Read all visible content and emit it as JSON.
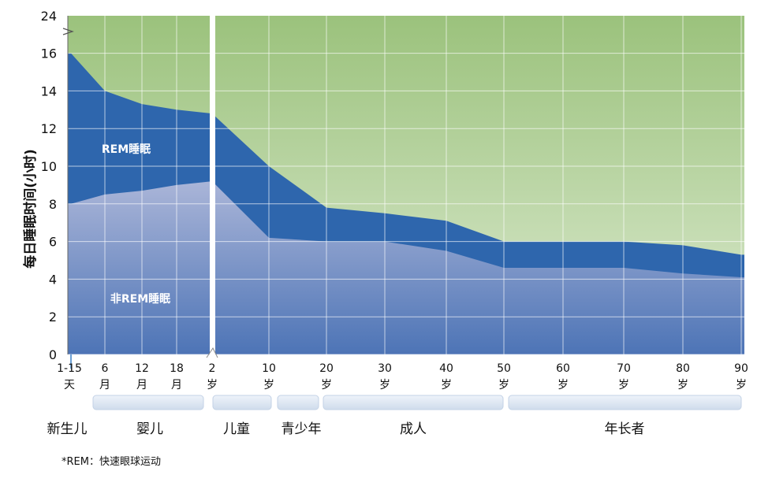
{
  "chart_data": {
    "type": "area",
    "ylabel": "每日睡眠时间(小时)",
    "ylim": [
      0,
      24
    ],
    "y_ticks": [
      "0",
      "2",
      "4",
      "6",
      "8",
      "10",
      "12",
      "14",
      "16",
      "24"
    ],
    "x_ticks": [
      {
        "top": "1-15",
        "bottom": "天"
      },
      {
        "top": "6",
        "bottom": "月"
      },
      {
        "top": "12",
        "bottom": "月"
      },
      {
        "top": "18",
        "bottom": "月"
      },
      {
        "top": "2",
        "bottom": "岁"
      },
      {
        "top": "10",
        "bottom": "岁"
      },
      {
        "top": "20",
        "bottom": "岁"
      },
      {
        "top": "30",
        "bottom": "岁"
      },
      {
        "top": "40",
        "bottom": "岁"
      },
      {
        "top": "50",
        "bottom": "岁"
      },
      {
        "top": "60",
        "bottom": "岁"
      },
      {
        "top": "70",
        "bottom": "岁"
      },
      {
        "top": "80",
        "bottom": "岁"
      },
      {
        "top": "90",
        "bottom": "岁"
      }
    ],
    "groups": [
      "新生儿",
      "婴儿",
      "儿童",
      "青少年",
      "成人",
      "年长者"
    ],
    "series": [
      {
        "name": "REM睡眠",
        "total_sleep": [
          16,
          14,
          13.3,
          13,
          12.8,
          10,
          7.8,
          7.5,
          7.1,
          6,
          6,
          6,
          5.8,
          5.3
        ],
        "non_rem_sleep": [
          8,
          8.5,
          8.7,
          9,
          9.2,
          6.2,
          6,
          6,
          5.5,
          4.6,
          4.6,
          4.6,
          4.3,
          4.1
        ]
      },
      {
        "name": "非REM睡眠"
      }
    ],
    "footnote": "*REM：快速眼球运动",
    "colors": {
      "awake_top": "#9bc27c",
      "awake_bottom": "#dcead0",
      "rem": "#2e66ad",
      "nonrem_top": "#aab5d8",
      "nonrem_bottom": "#4d74b6"
    }
  }
}
